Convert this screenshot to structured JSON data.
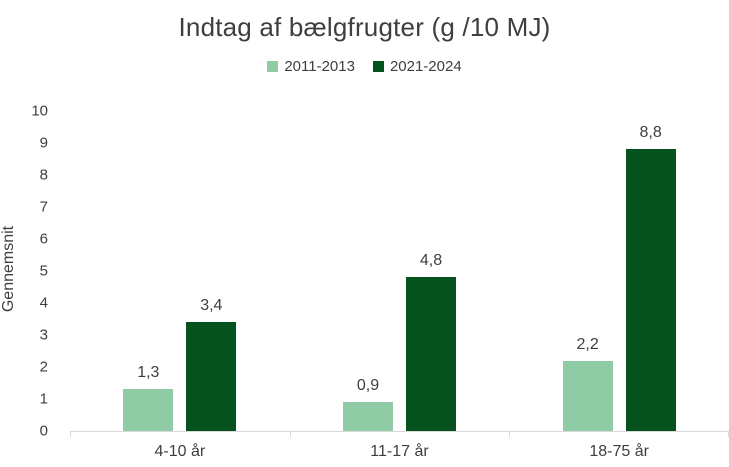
{
  "chart_data": {
    "type": "bar",
    "title": "Indtag af bælgfrugter (g /10 MJ)",
    "ylabel": "Gennemsnit",
    "xlabel": "",
    "categories": [
      "4-10 år",
      "11-17 år",
      "18-75 år"
    ],
    "series": [
      {
        "name": "2011-2013",
        "color": "#8fcca6",
        "values": [
          1.3,
          0.9,
          2.2
        ],
        "labels": [
          "1,3",
          "0,9",
          "2,2"
        ]
      },
      {
        "name": "2021-2024",
        "color": "#05521f",
        "values": [
          3.4,
          4.8,
          8.8
        ],
        "labels": [
          "3,4",
          "4,8",
          "8,8"
        ]
      }
    ],
    "ylim": [
      0,
      10
    ],
    "ytick_step": 1,
    "grid": false,
    "legend_position": "top-center",
    "axis_color": "#d9d9d9",
    "text_color": "#3e3e3e"
  }
}
